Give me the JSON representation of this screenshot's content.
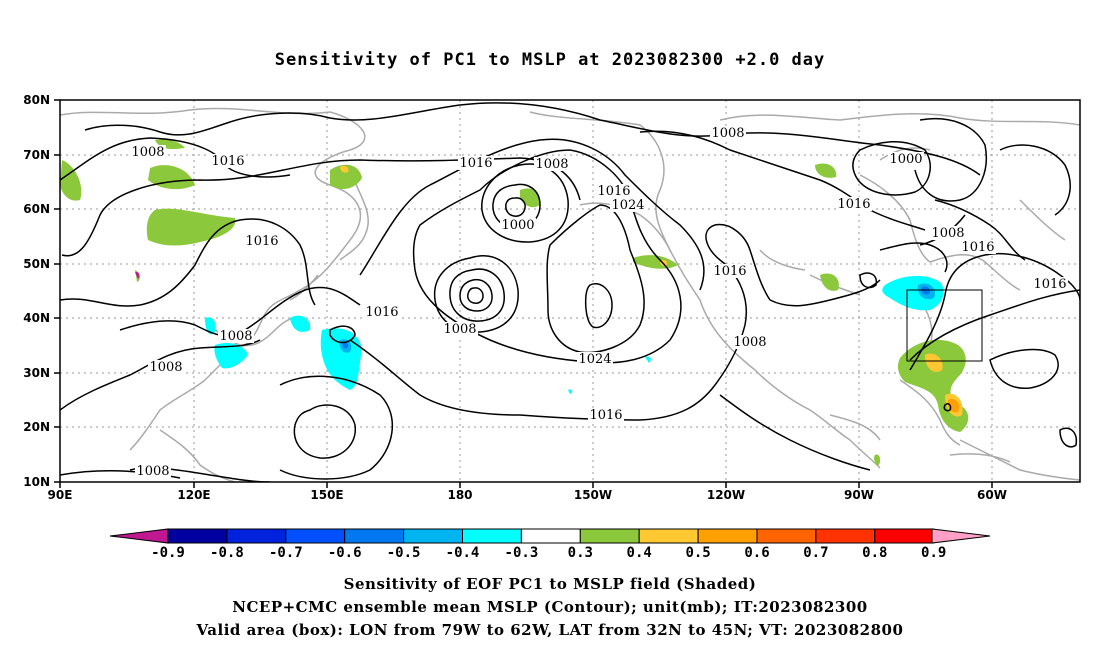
{
  "title": "Sensitivity of PC1 to MSLP at 2023082300 +2.0 day",
  "lat_labels": [
    "80N",
    "70N",
    "60N",
    "50N",
    "40N",
    "30N",
    "20N",
    "10N"
  ],
  "lon_labels": [
    "90E",
    "120E",
    "150E",
    "180",
    "150W",
    "120W",
    "90W",
    "60W"
  ],
  "contour_labels": [
    {
      "text": "1008"
    },
    {
      "text": "1016"
    },
    {
      "text": "1016"
    },
    {
      "text": "1008"
    },
    {
      "text": "1008"
    },
    {
      "text": "1008"
    },
    {
      "text": "1016"
    },
    {
      "text": "1016"
    },
    {
      "text": "1008"
    },
    {
      "text": "1000"
    },
    {
      "text": "1008"
    },
    {
      "text": "1016"
    },
    {
      "text": "1024"
    },
    {
      "text": "1024"
    },
    {
      "text": "1016"
    },
    {
      "text": "1008"
    },
    {
      "text": "1016"
    },
    {
      "text": "1008"
    },
    {
      "text": "1000"
    },
    {
      "text": "1016"
    },
    {
      "text": "1008"
    },
    {
      "text": "1016"
    },
    {
      "text": "1016"
    }
  ],
  "colorbar": {
    "colors": [
      "#0000a0",
      "#0022dd",
      "#0050ff",
      "#0078f0",
      "#00b4f0",
      "#00ffff",
      "#ffffff",
      "#8cc83c",
      "#ffc832",
      "#ffa000",
      "#ff6400",
      "#ff3200",
      "#ff0000"
    ],
    "left_arrow_color": "#c01890",
    "right_arrow_color": "#ffa0c8",
    "labels": [
      "-0.9",
      "-0.8",
      "-0.7",
      "-0.6",
      "-0.5",
      "-0.4",
      "-0.3",
      "0.3",
      "0.4",
      "0.5",
      "0.6",
      "0.7",
      "0.8",
      "0.9"
    ]
  },
  "captions": [
    "Sensitivity of EOF PC1 to MSLP field (Shaded)",
    "NCEP+CMC ensemble mean MSLP (Contour); unit(mb); IT:2023082300",
    "Valid area (box): LON from 79W to 62W, LAT from 32N to 45N; VT: 2023082800"
  ]
}
